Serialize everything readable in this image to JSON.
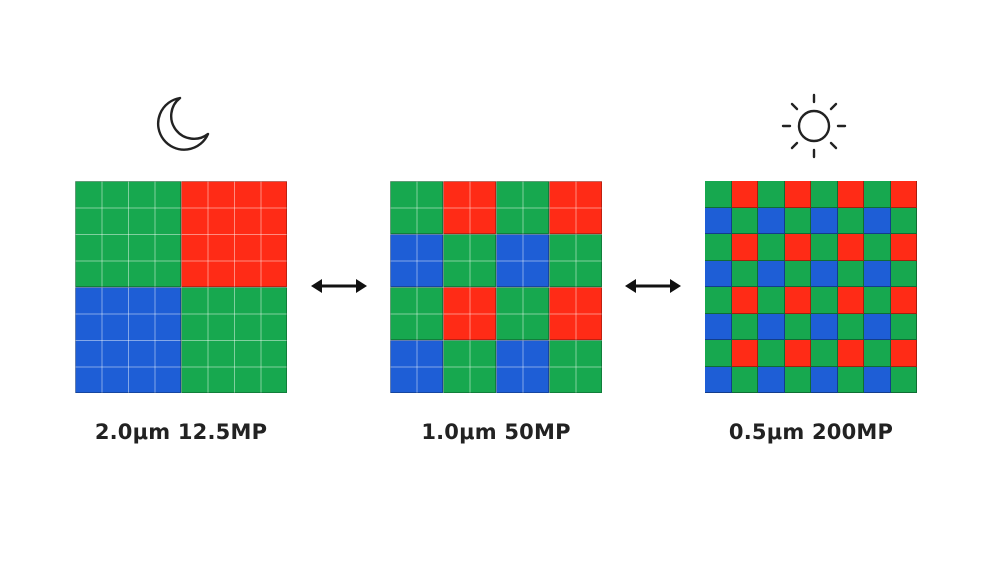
{
  "colors": {
    "green": "#17a84f",
    "red": "#ff2b16",
    "blue": "#1e5ed6",
    "pixel_line": "#8ee0a9"
  },
  "panels": [
    {
      "caption": "2.0μm 12.5MP",
      "divisions": 2,
      "pattern": [
        "green",
        "red",
        "blue",
        "green"
      ],
      "icon": "moon-icon"
    },
    {
      "caption": "1.0μm 50MP",
      "divisions": 4,
      "pattern": [
        "green",
        "red",
        "blue",
        "green"
      ]
    },
    {
      "caption": "0.5μm 200MP",
      "divisions": 8,
      "pattern": [
        "green",
        "red",
        "blue",
        "green"
      ],
      "icon": "sun-icon"
    }
  ],
  "arrows": [
    "double-arrow-icon",
    "double-arrow-icon"
  ]
}
